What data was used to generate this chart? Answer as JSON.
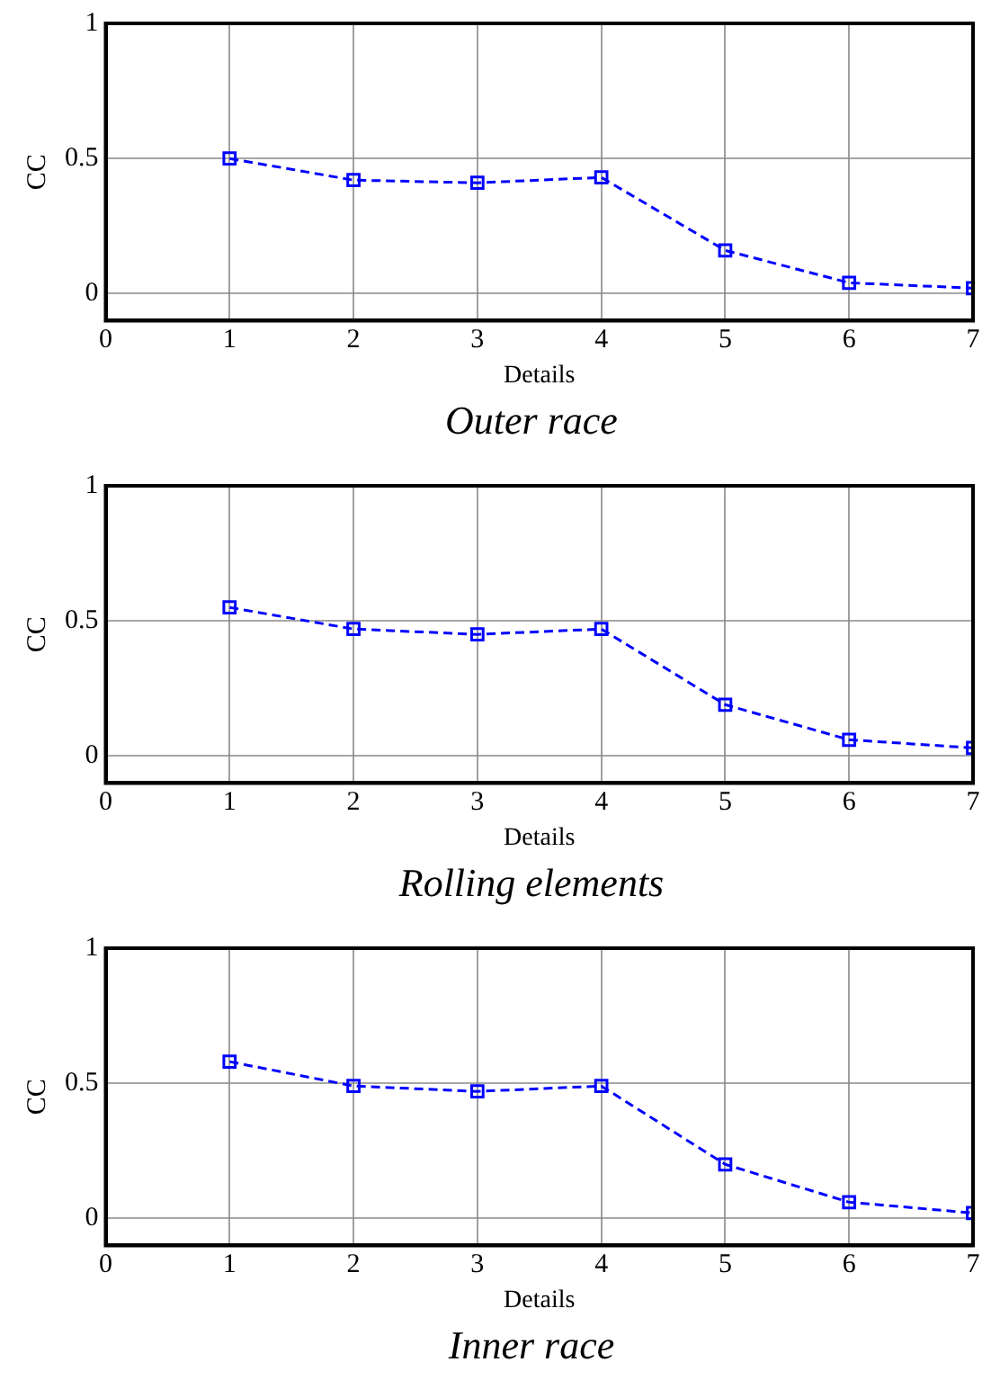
{
  "chart_data": [
    {
      "type": "line",
      "title": "Outer race",
      "xlabel": "Details",
      "ylabel": "CC",
      "x": [
        1,
        2,
        3,
        4,
        5,
        6,
        7
      ],
      "series": [
        {
          "color": "#0000ff",
          "values": [
            0.5,
            0.42,
            0.41,
            0.43,
            0.16,
            0.04,
            0.02
          ]
        }
      ],
      "xlim": [
        0,
        7
      ],
      "xticks": [
        0,
        1,
        2,
        3,
        4,
        5,
        6,
        7
      ],
      "ylim": [
        -0.1,
        1
      ],
      "yticks": [
        0,
        0.5,
        1
      ],
      "grid": true,
      "marker": "square",
      "line_style": "dashed",
      "legend": false
    },
    {
      "type": "line",
      "title": "Rolling elements",
      "xlabel": "Details",
      "ylabel": "CC",
      "x": [
        1,
        2,
        3,
        4,
        5,
        6,
        7
      ],
      "series": [
        {
          "color": "#0000ff",
          "values": [
            0.55,
            0.47,
            0.45,
            0.47,
            0.19,
            0.06,
            0.03
          ]
        }
      ],
      "xlim": [
        0,
        7
      ],
      "xticks": [
        0,
        1,
        2,
        3,
        4,
        5,
        6,
        7
      ],
      "ylim": [
        -0.1,
        1
      ],
      "yticks": [
        0,
        0.5,
        1
      ],
      "grid": true,
      "marker": "square",
      "line_style": "dashed",
      "legend": false
    },
    {
      "type": "line",
      "title": "Inner race",
      "xlabel": "Details",
      "ylabel": "CC",
      "x": [
        1,
        2,
        3,
        4,
        5,
        6,
        7
      ],
      "series": [
        {
          "color": "#0000ff",
          "values": [
            0.58,
            0.49,
            0.47,
            0.49,
            0.2,
            0.06,
            0.02
          ]
        }
      ],
      "xlim": [
        0,
        7
      ],
      "xticks": [
        0,
        1,
        2,
        3,
        4,
        5,
        6,
        7
      ],
      "ylim": [
        -0.1,
        1
      ],
      "yticks": [
        0,
        0.5,
        1
      ],
      "grid": true,
      "marker": "square",
      "line_style": "dashed",
      "legend": false
    }
  ]
}
